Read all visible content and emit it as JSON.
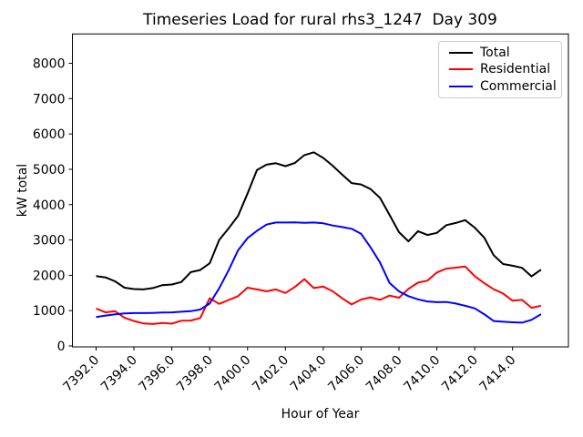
{
  "chart_data": {
    "type": "line",
    "title": "Timeseries Load for rural rhs3_1247  Day 309",
    "xlabel": "Hour of Year",
    "ylabel": "kW total",
    "grid": false,
    "legend_position": "upper right",
    "line_width": 2,
    "xlim": [
      7390.75,
      7416.95
    ],
    "ylim": [
      0,
      8830
    ],
    "x": [
      7392.0,
      7392.5,
      7393.0,
      7393.5,
      7394.0,
      7394.5,
      7395.0,
      7395.5,
      7396.0,
      7396.5,
      7397.0,
      7397.5,
      7398.0,
      7398.5,
      7399.0,
      7399.5,
      7400.0,
      7400.5,
      7401.0,
      7401.5,
      7402.0,
      7402.5,
      7403.0,
      7403.5,
      7404.0,
      7404.5,
      7405.0,
      7405.5,
      7406.0,
      7406.5,
      7407.0,
      7407.5,
      7408.0,
      7408.5,
      7409.0,
      7409.5,
      7410.0,
      7410.5,
      7411.0,
      7411.5,
      7412.0,
      7412.5,
      7413.0,
      7413.5,
      7414.0,
      7414.5,
      7415.0,
      7415.5
    ],
    "series": [
      {
        "name": "Total",
        "color": "#000000",
        "values": [
          1980,
          1940,
          1830,
          1650,
          1610,
          1600,
          1640,
          1720,
          1740,
          1810,
          2090,
          2150,
          2340,
          3000,
          3330,
          3680,
          4310,
          4980,
          5130,
          5170,
          5090,
          5180,
          5400,
          5480,
          5320,
          5100,
          4850,
          4610,
          4570,
          4440,
          4190,
          3710,
          3220,
          2960,
          3250,
          3140,
          3200,
          3420,
          3480,
          3560,
          3350,
          3070,
          2570,
          2320,
          2270,
          2210,
          1970,
          2160
        ]
      },
      {
        "name": "Residential",
        "color": "#ff0000",
        "values": [
          1060,
          950,
          985,
          795,
          705,
          640,
          620,
          650,
          630,
          715,
          720,
          790,
          1350,
          1190,
          1300,
          1410,
          1650,
          1600,
          1545,
          1600,
          1500,
          1670,
          1890,
          1640,
          1680,
          1545,
          1350,
          1175,
          1315,
          1375,
          1305,
          1425,
          1365,
          1615,
          1790,
          1850,
          2080,
          2190,
          2215,
          2250,
          1975,
          1780,
          1605,
          1485,
          1280,
          1305,
          1080,
          1140
        ]
      },
      {
        "name": "Commercial",
        "color": "#0000ff",
        "values": [
          820,
          860,
          895,
          920,
          930,
          930,
          935,
          945,
          950,
          970,
          985,
          1030,
          1200,
          1630,
          2145,
          2705,
          3050,
          3260,
          3435,
          3495,
          3495,
          3500,
          3485,
          3495,
          3470,
          3410,
          3365,
          3315,
          3175,
          2790,
          2360,
          1785,
          1545,
          1410,
          1320,
          1260,
          1240,
          1245,
          1200,
          1135,
          1065,
          900,
          705,
          685,
          670,
          660,
          740,
          900
        ]
      }
    ],
    "xticks": {
      "values": [
        7392,
        7394,
        7396,
        7398,
        7400,
        7402,
        7404,
        7406,
        7408,
        7410,
        7412,
        7414
      ],
      "labels": [
        "7392.0",
        "7394.0",
        "7396.0",
        "7398.0",
        "7400.0",
        "7402.0",
        "7404.0",
        "7406.0",
        "7408.0",
        "7410.0",
        "7412.0",
        "7414.0"
      ]
    },
    "yticks": {
      "values": [
        0,
        1000,
        2000,
        3000,
        4000,
        5000,
        6000,
        7000,
        8000
      ],
      "labels": [
        "0",
        "1000",
        "2000",
        "3000",
        "4000",
        "5000",
        "6000",
        "7000",
        "8000"
      ]
    }
  }
}
